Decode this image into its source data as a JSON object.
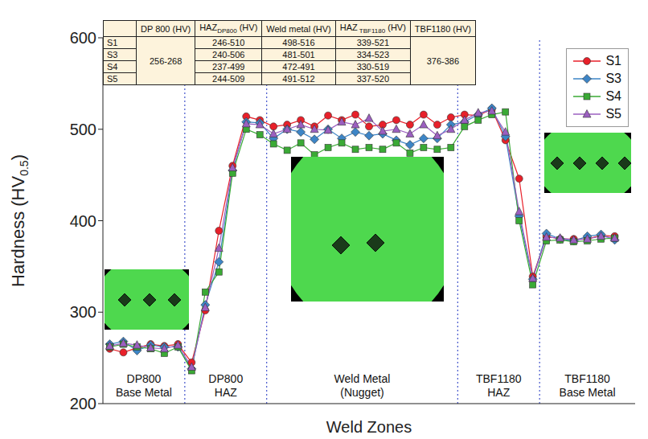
{
  "chart_data": {
    "type": "line",
    "x_label": "Weld Zones",
    "y_label": {
      "main": "Hardness (HV",
      "sub": "0.5",
      "after": ")"
    },
    "x": [
      0,
      1,
      2,
      3,
      4,
      5,
      6,
      7,
      8,
      9,
      10,
      11,
      12,
      13,
      14,
      15,
      16,
      17,
      18,
      19,
      20,
      21,
      22,
      23,
      24,
      25,
      26,
      27,
      28,
      29,
      30,
      31,
      32,
      33,
      34,
      35,
      36,
      37
    ],
    "xlim": [
      -0.5,
      38.5
    ],
    "tick_labels": "y",
    "ylim": [
      200,
      600
    ],
    "yticks": [
      200,
      300,
      400,
      500,
      600
    ],
    "grid": false,
    "legend": "upper right",
    "series": [
      {
        "name": "S1",
        "color": "#e8202a",
        "marker": "circle",
        "values": [
          260,
          256,
          261,
          265,
          263,
          265,
          245,
          302,
          389,
          460,
          514,
          510,
          503,
          505,
          510,
          503,
          515,
          510,
          516,
          503,
          505,
          510,
          505,
          516,
          505,
          513,
          516,
          515,
          522,
          488,
          446,
          339,
          383,
          380,
          380,
          380,
          384,
          383
        ]
      },
      {
        "name": "S3",
        "color": "#3d85c6",
        "marker": "diamond",
        "values": [
          265,
          268,
          258,
          264,
          262,
          262,
          238,
          308,
          355,
          455,
          508,
          507,
          490,
          500,
          497,
          489,
          500,
          490,
          497,
          493,
          495,
          488,
          483,
          490,
          490,
          505,
          508,
          516,
          523,
          492,
          405,
          336,
          386,
          380,
          378,
          383,
          385,
          379
        ]
      },
      {
        "name": "S4",
        "color": "#3aaa35",
        "marker": "square",
        "values": [
          262,
          265,
          262,
          260,
          255,
          262,
          236,
          322,
          344,
          452,
          500,
          494,
          484,
          477,
          485,
          472,
          480,
          485,
          478,
          480,
          478,
          485,
          474,
          480,
          478,
          480,
          503,
          510,
          516,
          519,
          400,
          330,
          378,
          379,
          377,
          378,
          380,
          381
        ]
      },
      {
        "name": "S5",
        "color": "#9b5fc0",
        "marker": "triangle",
        "values": [
          263,
          266,
          264,
          261,
          260,
          264,
          240,
          305,
          370,
          458,
          506,
          505,
          495,
          500,
          505,
          500,
          499,
          508,
          505,
          512,
          498,
          500,
          495,
          505,
          493,
          500,
          510,
          518,
          520,
          497,
          410,
          337,
          382,
          381,
          379,
          380,
          383,
          381
        ]
      }
    ],
    "zones": [
      {
        "label": [
          "DP800",
          "Base Metal"
        ],
        "from": -0.5,
        "to": 5.5
      },
      {
        "label": [
          "DP800",
          "HAZ"
        ],
        "from": 5.5,
        "to": 11.5
      },
      {
        "label": [
          "Weld Metal",
          "(Nugget)"
        ],
        "from": 11.5,
        "to": 25.5
      },
      {
        "label": [
          "TBF1180",
          "HAZ"
        ],
        "from": 25.5,
        "to": 31.5
      },
      {
        "label": [
          "TBF1180",
          "Base Metal"
        ],
        "from": 31.5,
        "to": 38.5
      }
    ],
    "table": {
      "headers": [
        null,
        {
          "main": "DP 800 (HV)"
        },
        {
          "main": "HAZ",
          "sub": "DP800",
          "after": " (HV)"
        },
        {
          "main": "Weld metal (HV)"
        },
        {
          "main": "HAZ",
          "sub": " TBF1180",
          "after": " (HV)"
        },
        {
          "main": "TBF1180 (HV)"
        }
      ],
      "dp800": "256-268",
      "tbf1180": "376-386",
      "rows": [
        {
          "name": "S1",
          "haz_dp800": "246-510",
          "weld": "498-516",
          "haz_tbf": "339-521"
        },
        {
          "name": "S3",
          "haz_dp800": "240-506",
          "weld": "481-501",
          "haz_tbf": "334-523"
        },
        {
          "name": "S4",
          "haz_dp800": "237-499",
          "weld": "472-491",
          "haz_tbf": "330-519"
        },
        {
          "name": "S5",
          "haz_dp800": "244-509",
          "weld": "491-512",
          "haz_tbf": "337-520"
        }
      ]
    }
  }
}
